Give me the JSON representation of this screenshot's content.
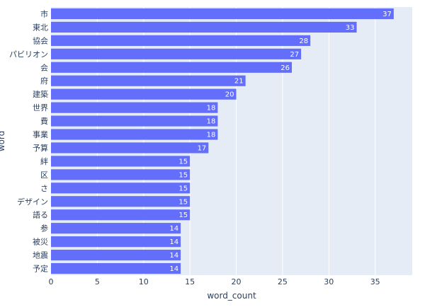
{
  "chart_data": {
    "type": "bar",
    "orientation": "horizontal",
    "categories": [
      "市",
      "東北",
      "協会",
      "パビリオン",
      "会",
      "府",
      "建築",
      "世界",
      "費",
      "事業",
      "予算",
      "絆",
      "区",
      "さ",
      "デザイン",
      "語る",
      "参",
      "被災",
      "地震",
      "予定"
    ],
    "values": [
      37,
      33,
      28,
      27,
      26,
      21,
      20,
      18,
      18,
      18,
      17,
      15,
      15,
      15,
      15,
      15,
      14,
      14,
      14,
      14
    ],
    "xlabel": "word_count",
    "ylabel": "word",
    "xlim": [
      0,
      39
    ],
    "xticks": [
      0,
      5,
      10,
      15,
      20,
      25,
      30,
      35
    ],
    "grid": true,
    "data_labels": true,
    "colors": {
      "bar": "#636efa",
      "plot_bg": "#e5ecf6",
      "grid": "#ffffff",
      "text": "#2a3f5f",
      "bar_label": "#ffffff"
    }
  }
}
